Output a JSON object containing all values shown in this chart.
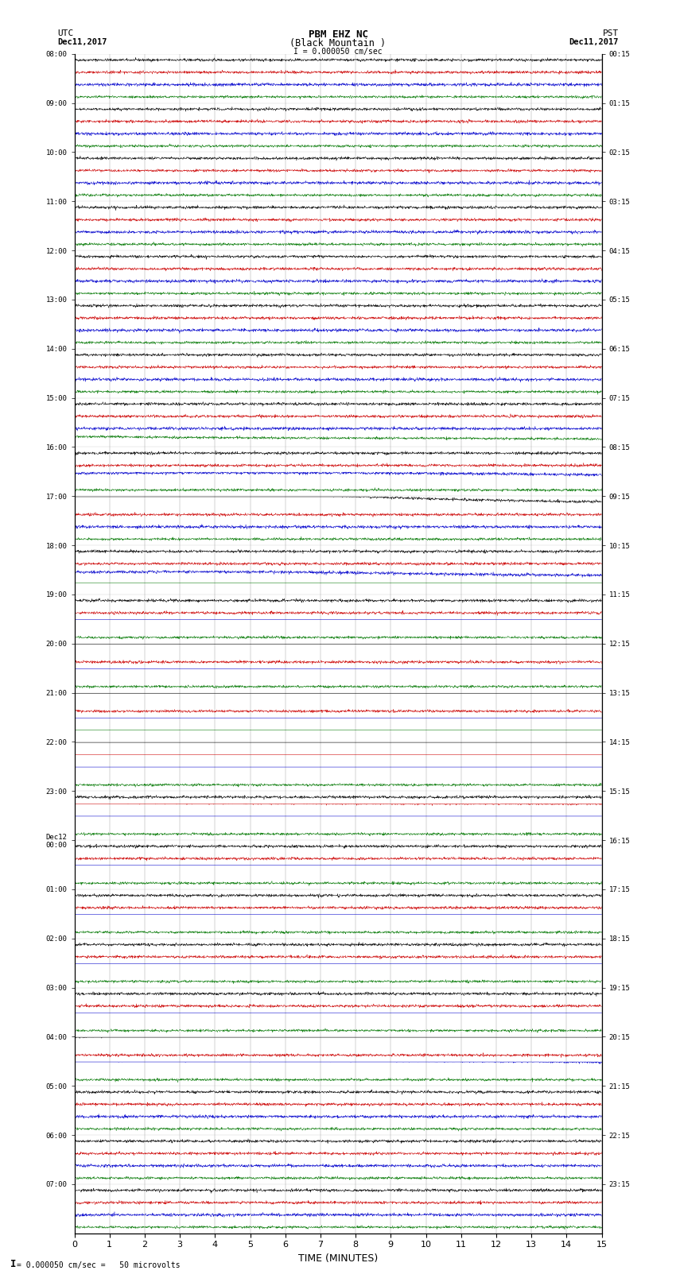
{
  "title_line1": "PBM EHZ NC",
  "title_line2": "(Black Mountain )",
  "title_line3": "I = 0.000050 cm/sec",
  "label_utc": "UTC",
  "label_utc_date": "Dec11,2017",
  "label_pst": "PST",
  "label_pst_date": "Dec11,2017",
  "xlabel": "TIME (MINUTES)",
  "footer": "0.000050 cm/sec =   50 microvolts",
  "xlim": [
    0,
    15
  ],
  "xticks": [
    0,
    1,
    2,
    3,
    4,
    5,
    6,
    7,
    8,
    9,
    10,
    11,
    12,
    13,
    14,
    15
  ],
  "bg_color": "#ffffff",
  "trace_colors": [
    "#000000",
    "#cc0000",
    "#0000cc",
    "#007700"
  ],
  "num_hours": 24,
  "traces_per_hour": 4,
  "utc_times_hourly": [
    "08:00",
    "09:00",
    "10:00",
    "11:00",
    "12:00",
    "13:00",
    "14:00",
    "15:00",
    "16:00",
    "17:00",
    "18:00",
    "19:00",
    "20:00",
    "21:00",
    "22:00",
    "23:00",
    "Dec12\n00:00",
    "01:00",
    "02:00",
    "03:00",
    "04:00",
    "05:00",
    "06:00",
    "07:00"
  ],
  "pst_times_hourly": [
    "00:15",
    "01:15",
    "02:15",
    "03:15",
    "04:15",
    "05:15",
    "06:15",
    "07:15",
    "08:15",
    "09:15",
    "10:15",
    "11:15",
    "12:15",
    "13:15",
    "14:15",
    "15:15",
    "16:15",
    "17:15",
    "18:15",
    "19:15",
    "20:15",
    "21:15",
    "22:15",
    "23:15"
  ]
}
